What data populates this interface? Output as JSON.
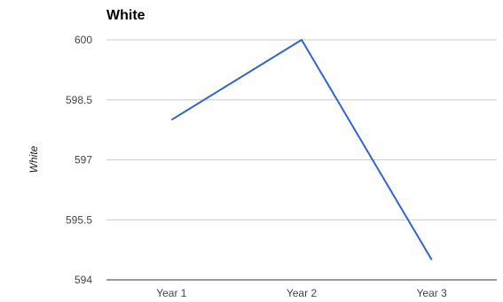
{
  "chart_data": {
    "type": "line",
    "title": "White",
    "ylabel": "White",
    "xlabel": "",
    "categories": [
      "Year 1",
      "Year 2",
      "Year 3"
    ],
    "series": [
      {
        "values": [
          598.0,
          600.0,
          594.5
        ]
      }
    ],
    "ylim": [
      594,
      600
    ],
    "yticks": [
      594,
      595.5,
      597,
      598.5,
      600
    ],
    "ytick_labels": [
      "594",
      "595.5",
      "597",
      "598.5",
      "600"
    ],
    "grid": true,
    "legend": "none",
    "line_color": "#3366cc"
  }
}
